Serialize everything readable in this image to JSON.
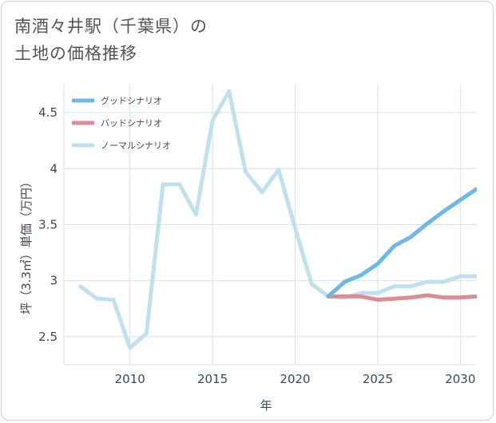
{
  "title": {
    "line1": "南酒々井駅（千葉県）の",
    "line2": "土地の価格推移"
  },
  "chart_data": {
    "type": "line",
    "xlabel": "年",
    "ylabel": "坪（3.3㎡）単価（万円）",
    "xlim": [
      2006,
      2031
    ],
    "ylim": [
      2.25,
      4.75
    ],
    "x_ticks": [
      2010,
      2015,
      2020,
      2025,
      2030
    ],
    "y_ticks": [
      2.5,
      3,
      3.5,
      4,
      4.5
    ],
    "x_tick_labels": [
      "2010",
      "2015",
      "2020",
      "2025",
      "2030"
    ],
    "y_tick_labels": [
      "2.5",
      "3",
      "3.5",
      "4",
      "4.5"
    ],
    "legend_position": "top-left",
    "series": [
      {
        "name": "グッドシナリオ",
        "color": "#6cb8ea",
        "x": [
          2022,
          2023,
          2024,
          2025,
          2026,
          2027,
          2028,
          2029,
          2030,
          2031
        ],
        "values": [
          2.86,
          2.99,
          3.05,
          3.15,
          3.31,
          3.39,
          3.51,
          3.62,
          3.72,
          3.82
        ]
      },
      {
        "name": "バッドシナリオ",
        "color": "#dc8c94",
        "x": [
          2022,
          2023,
          2024,
          2025,
          2026,
          2027,
          2028,
          2029,
          2030,
          2031
        ],
        "values": [
          2.86,
          2.86,
          2.86,
          2.83,
          2.84,
          2.85,
          2.87,
          2.85,
          2.85,
          2.86
        ]
      },
      {
        "name": "ノーマルシナリオ",
        "color": "#bfe0ee",
        "x": [
          2007,
          2008,
          2009,
          2010,
          2011,
          2012,
          2013,
          2014,
          2015,
          2016,
          2017,
          2018,
          2019,
          2020,
          2021,
          2022,
          2023,
          2024,
          2025,
          2026,
          2027,
          2028,
          2029,
          2030,
          2031
        ],
        "values": [
          2.95,
          2.84,
          2.83,
          2.4,
          2.53,
          3.86,
          3.86,
          3.59,
          4.43,
          4.69,
          3.97,
          3.79,
          3.99,
          3.47,
          2.97,
          2.86,
          2.85,
          2.89,
          2.89,
          2.95,
          2.95,
          2.99,
          2.99,
          3.04,
          3.04
        ]
      }
    ]
  }
}
